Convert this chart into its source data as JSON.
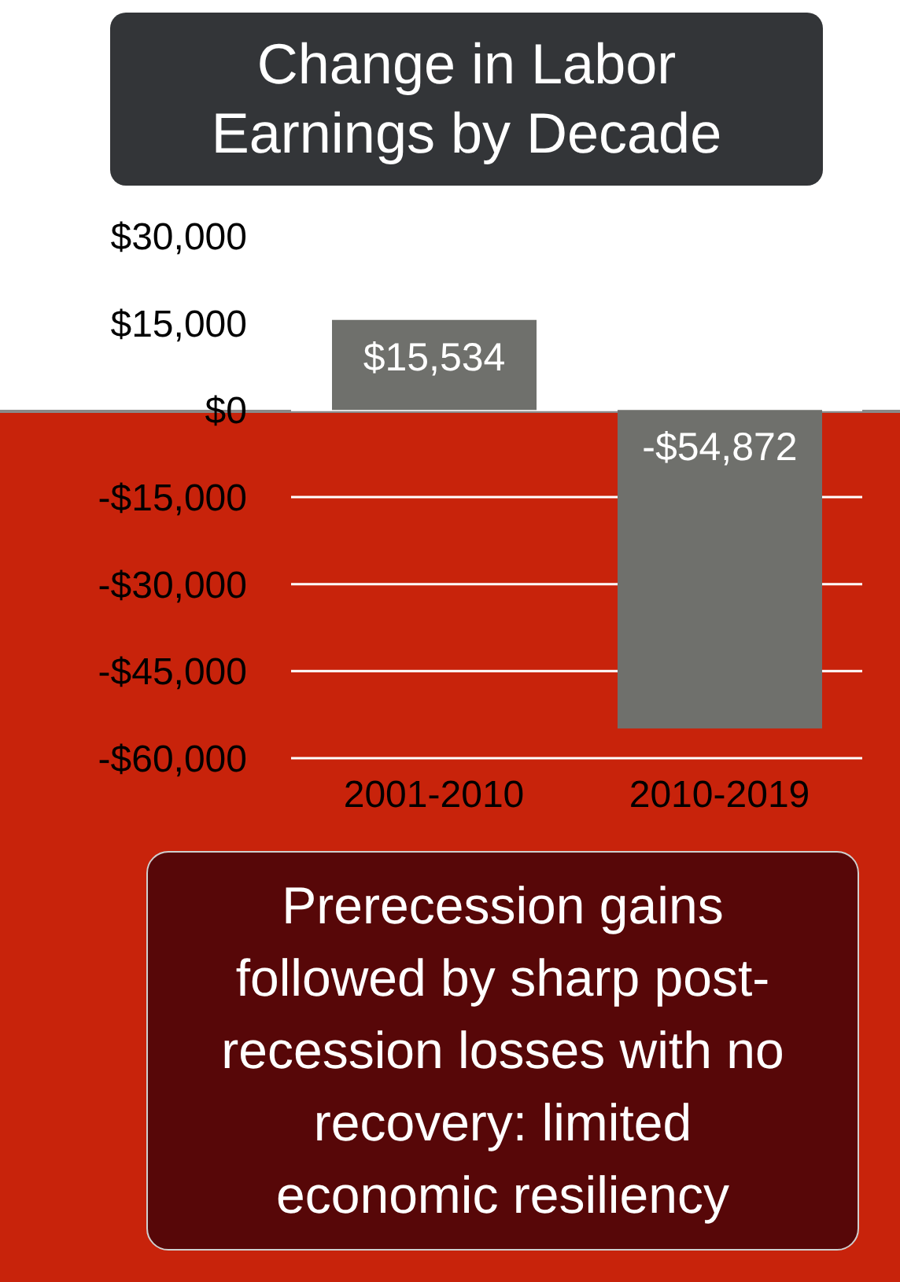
{
  "chart_data": {
    "type": "bar",
    "title": "Change in Labor Earnings by Decade",
    "categories": [
      "2001-2010",
      "2010-2019"
    ],
    "values": [
      15534,
      -54872
    ],
    "value_labels": [
      "$15,534",
      "-$54,872"
    ],
    "color": "#6f706c",
    "ylim": [
      -60000,
      30000
    ],
    "yticks": [
      {
        "value": 30000,
        "label": "$30,000"
      },
      {
        "value": 15000,
        "label": "$15,000"
      },
      {
        "value": 0,
        "label": "$0"
      },
      {
        "value": -15000,
        "label": "-$15,000"
      },
      {
        "value": -30000,
        "label": "-$30,000"
      },
      {
        "value": -45000,
        "label": "-$45,000"
      },
      {
        "value": -60000,
        "label": "-$60,000"
      }
    ],
    "grid": "y",
    "legend": false,
    "annotations": [
      "Prerecession gains followed by sharp post-recession losses with no recovery: limited economic resiliency"
    ]
  }
}
